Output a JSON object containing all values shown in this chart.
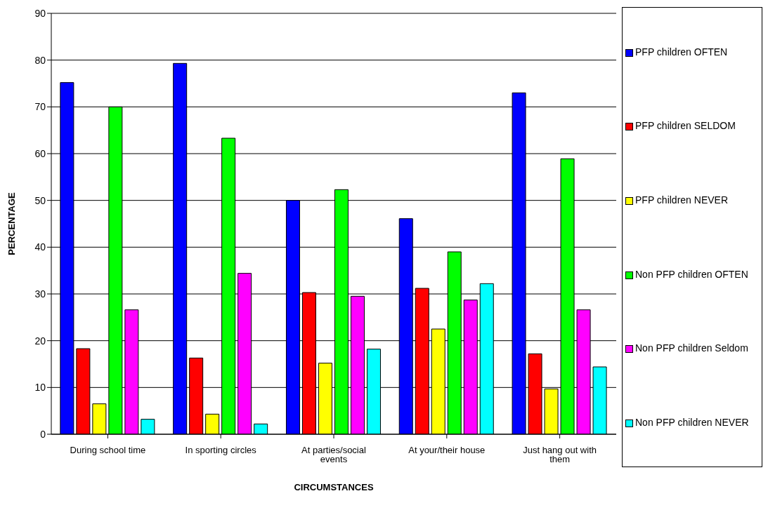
{
  "chart_data": {
    "type": "bar",
    "xlabel": "CIRCUMSTANCES",
    "ylabel": "PERCENTAGE",
    "categories": [
      "During school time",
      "In sporting circles",
      "At parties/social events",
      "At your/their house",
      "Just hang out with them"
    ],
    "series": [
      {
        "name": "PFP children OFTEN",
        "color": "#0000ff",
        "values": [
          75.2,
          79.3,
          50.0,
          46.1,
          73.0
        ]
      },
      {
        "name": "PFP children SELDOM",
        "color": "#ff0000",
        "values": [
          18.3,
          16.3,
          30.3,
          31.2,
          17.2
        ]
      },
      {
        "name": "PFP children NEVER",
        "color": "#ffff00",
        "values": [
          6.5,
          4.3,
          15.2,
          22.5,
          9.7
        ]
      },
      {
        "name": "Non PFP children OFTEN",
        "color": "#00ff00",
        "values": [
          70.0,
          63.3,
          52.3,
          39.0,
          58.9
        ]
      },
      {
        "name": "Non PFP children Seldom",
        "color": "#ff00ff",
        "values": [
          26.6,
          34.4,
          29.5,
          28.7,
          26.6
        ]
      },
      {
        "name": "Non PFP children NEVER",
        "color": "#00ffff",
        "values": [
          3.2,
          2.2,
          18.2,
          32.2,
          14.4
        ]
      }
    ],
    "ylim": [
      0,
      90
    ],
    "yticks": [
      0,
      10,
      20,
      30,
      40,
      50,
      60,
      70,
      80,
      90
    ],
    "grid": "y",
    "legend": "right"
  }
}
